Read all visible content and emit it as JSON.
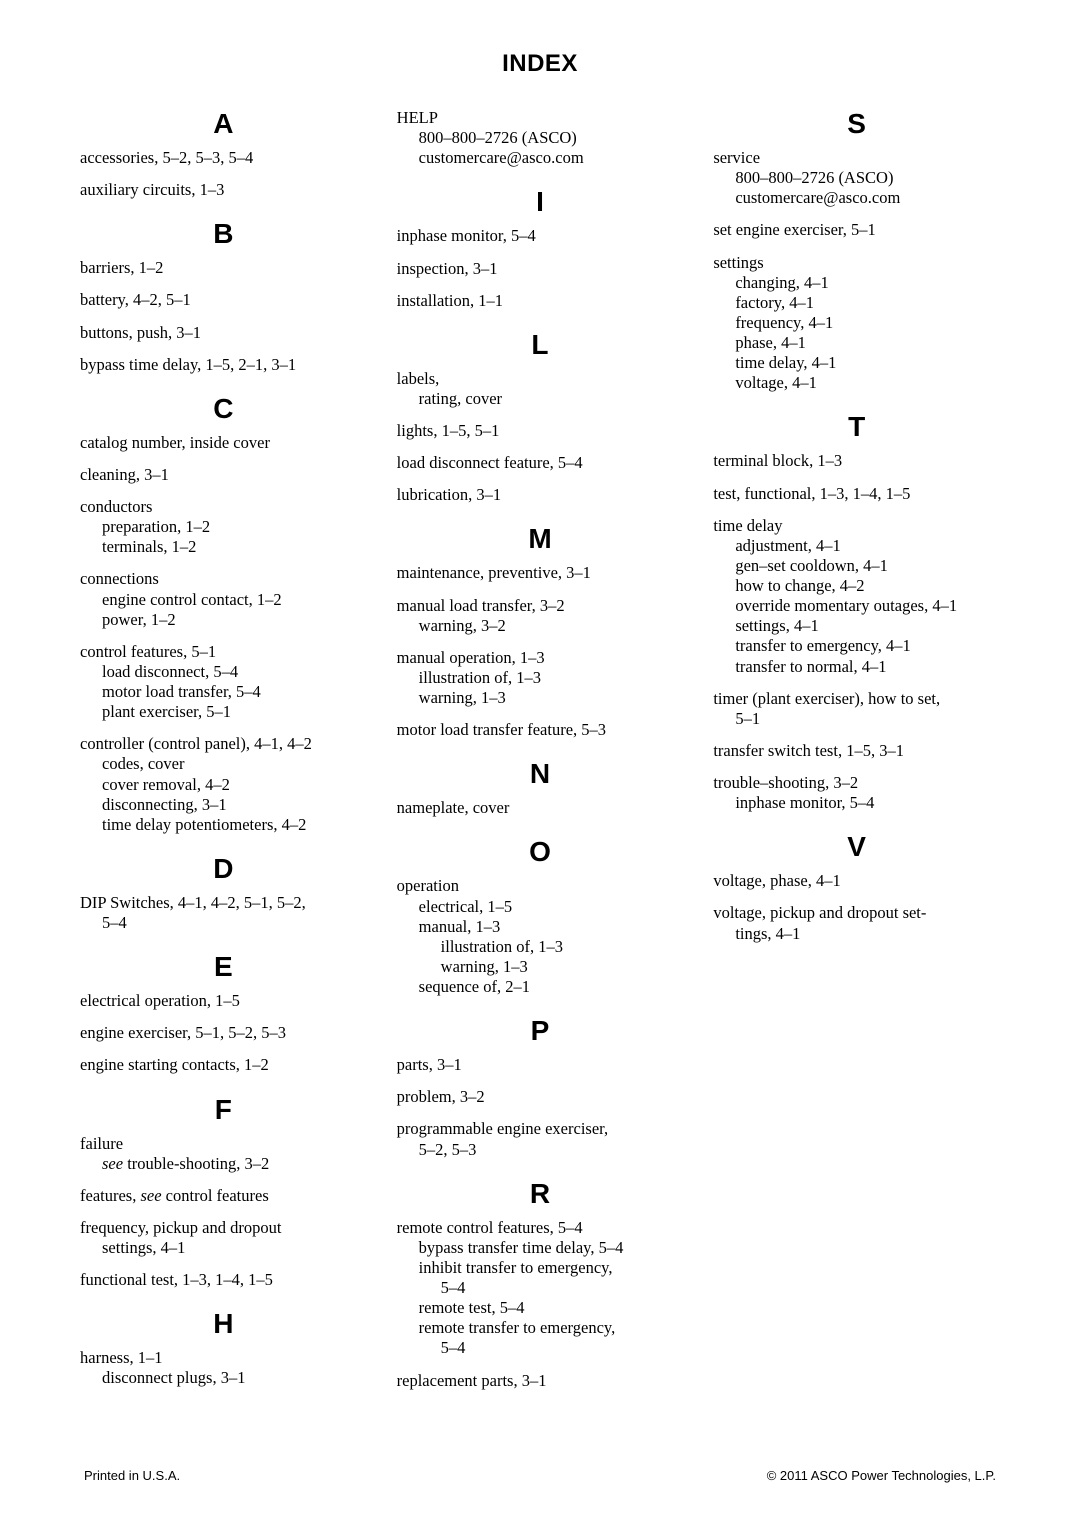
{
  "title": "INDEX",
  "footer_left": "Printed in U.S.A.",
  "footer_right": "© 2011 ASCO Power Technologies, L.P.",
  "sections": [
    {
      "letter": "A",
      "entries": [
        {
          "lines": [
            "accessories, 5–2, 5–3, 5–4"
          ]
        },
        {
          "lines": [
            "auxiliary circuits, 1–3"
          ]
        }
      ]
    },
    {
      "letter": "B",
      "entries": [
        {
          "lines": [
            "barriers, 1–2"
          ]
        },
        {
          "lines": [
            "battery, 4–2, 5–1"
          ]
        },
        {
          "lines": [
            "buttons, push, 3–1"
          ]
        },
        {
          "lines": [
            "bypass time delay, 1–5, 2–1, 3–1"
          ]
        }
      ]
    },
    {
      "letter": "C",
      "entries": [
        {
          "lines": [
            "catalog number, inside cover"
          ]
        },
        {
          "lines": [
            "cleaning, 3–1"
          ]
        },
        {
          "lines": [
            "conductors",
            {
              "t": "preparation, 1–2",
              "i": 1
            },
            {
              "t": "terminals, 1–2",
              "i": 1
            }
          ]
        },
        {
          "lines": [
            "connections",
            {
              "t": "engine control contact, 1–2",
              "i": 1
            },
            {
              "t": "power, 1–2",
              "i": 1
            }
          ]
        },
        {
          "lines": [
            "control features, 5–1",
            {
              "t": "load disconnect, 5–4",
              "i": 1
            },
            {
              "t": "motor load transfer, 5–4",
              "i": 1
            },
            {
              "t": "plant exerciser, 5–1",
              "i": 1
            }
          ]
        },
        {
          "lines": [
            "controller (control panel), 4–1, 4–2",
            {
              "t": "codes, cover",
              "i": 1
            },
            {
              "t": "cover removal, 4–2",
              "i": 1
            },
            {
              "t": "disconnecting, 3–1",
              "i": 1
            },
            {
              "t": "time delay potentiometers, 4–2",
              "i": 1
            }
          ]
        }
      ]
    },
    {
      "letter": "D",
      "entries": [
        {
          "lines": [
            "DIP Switches, 4–1, 4–2, 5–1, 5–2, ",
            {
              "t": "5–4",
              "i": 1
            }
          ]
        }
      ]
    },
    {
      "letter": "E",
      "entries": [
        {
          "lines": [
            "electrical operation, 1–5"
          ]
        },
        {
          "lines": [
            "engine exerciser, 5–1, 5–2, 5–3"
          ]
        },
        {
          "lines": [
            "engine starting contacts, 1–2"
          ]
        }
      ]
    },
    {
      "letter": "F",
      "entries": [
        {
          "lines": [
            "failure",
            {
              "html": "<span class='it'>see</span> trouble-shooting, 3–2",
              "i": 1
            }
          ]
        },
        {
          "lines": [
            {
              "html": "features, <span class='it'>see</span> control features"
            }
          ]
        },
        {
          "lines": [
            "frequency, pickup and dropout",
            {
              "t": "settings, 4–1",
              "i": 1
            }
          ]
        },
        {
          "lines": [
            "functional test, 1–3, 1–4, 1–5"
          ]
        }
      ]
    },
    {
      "letter": "H",
      "entries": [
        {
          "lines": [
            "harness, 1–1",
            {
              "t": "disconnect plugs, 3–1",
              "i": 1
            }
          ]
        },
        {
          "lines": [
            "HELP",
            {
              "t": "800–800–2726 (ASCO)",
              "i": 1
            },
            {
              "t": "customercare@asco.com",
              "i": 1
            }
          ]
        }
      ]
    },
    {
      "letter": "I",
      "entries": [
        {
          "lines": [
            "inphase monitor, 5–4"
          ]
        },
        {
          "lines": [
            "inspection, 3–1"
          ]
        },
        {
          "lines": [
            "installation, 1–1"
          ]
        }
      ]
    },
    {
      "letter": "L",
      "entries": [
        {
          "lines": [
            "labels,",
            {
              "t": "rating, cover",
              "i": 1
            }
          ]
        },
        {
          "lines": [
            "lights, 1–5, 5–1"
          ]
        },
        {
          "lines": [
            "load disconnect feature, 5–4"
          ]
        },
        {
          "lines": [
            "lubrication, 3–1"
          ]
        }
      ]
    },
    {
      "letter": "M",
      "entries": [
        {
          "lines": [
            "maintenance, preventive, 3–1"
          ]
        },
        {
          "lines": [
            "manual load transfer, 3–2",
            {
              "t": "warning, 3–2",
              "i": 1
            }
          ]
        },
        {
          "lines": [
            "manual operation, 1–3",
            {
              "t": "illustration of, 1–3",
              "i": 1
            },
            {
              "t": "warning, 1–3",
              "i": 1
            }
          ]
        },
        {
          "lines": [
            "motor load transfer feature, 5–3"
          ]
        }
      ]
    },
    {
      "letter": "N",
      "entries": [
        {
          "lines": [
            "nameplate, cover"
          ]
        }
      ]
    },
    {
      "letter": "O",
      "entries": [
        {
          "lines": [
            "operation",
            {
              "t": "electrical, 1–5",
              "i": 1
            },
            {
              "t": "manual, 1–3",
              "i": 1
            },
            {
              "t": "illustration of, 1–3",
              "i": 2
            },
            {
              "t": "warning, 1–3",
              "i": 2
            },
            {
              "t": "sequence of, 2–1",
              "i": 1
            }
          ]
        }
      ]
    },
    {
      "letter": "P",
      "entries": [
        {
          "lines": [
            "parts, 3–1"
          ]
        },
        {
          "lines": [
            "problem, 3–2"
          ]
        },
        {
          "lines": [
            "programmable engine exerciser, ",
            {
              "t": "5–2, 5–3",
              "i": 1
            }
          ]
        }
      ]
    },
    {
      "letter": "R",
      "entries": [
        {
          "lines": [
            "remote control features, 5–4",
            {
              "t": "bypass transfer time delay, 5–4",
              "i": 1
            },
            {
              "t": "inhibit transfer to emergency, ",
              "i": 1
            },
            {
              "t": "5–4",
              "i": 2
            },
            {
              "t": "remote test, 5–4",
              "i": 1
            },
            {
              "t": "remote transfer to emergency, ",
              "i": 1
            },
            {
              "t": "5–4",
              "i": 2
            }
          ]
        },
        {
          "lines": [
            "replacement parts, 3–1"
          ]
        }
      ]
    },
    {
      "letter": "S",
      "entries": [
        {
          "lines": [
            "service",
            {
              "t": "800–800–2726 (ASCO)",
              "i": 1
            },
            {
              "t": "customercare@asco.com",
              "i": 1
            }
          ]
        },
        {
          "lines": [
            "set engine exerciser, 5–1"
          ]
        },
        {
          "lines": [
            "settings",
            {
              "t": "changing, 4–1",
              "i": 1
            },
            {
              "t": "factory, 4–1",
              "i": 1
            },
            {
              "t": "frequency, 4–1",
              "i": 1
            },
            {
              "t": "phase, 4–1",
              "i": 1
            },
            {
              "t": "time delay, 4–1",
              "i": 1
            },
            {
              "t": "voltage, 4–1",
              "i": 1
            }
          ]
        }
      ]
    },
    {
      "letter": "T",
      "entries": [
        {
          "lines": [
            "terminal block, 1–3"
          ]
        },
        {
          "lines": [
            "test, functional, 1–3, 1–4, 1–5"
          ]
        },
        {
          "lines": [
            "time delay",
            {
              "t": "adjustment, 4–1",
              "i": 1
            },
            {
              "t": "gen–set cooldown, 4–1",
              "i": 1
            },
            {
              "t": "how to change, 4–2",
              "i": 1
            },
            {
              "t": "override momentary outages, 4–1",
              "i": 1
            },
            {
              "t": "settings, 4–1",
              "i": 1
            },
            {
              "t": "transfer to emergency, 4–1",
              "i": 1
            },
            {
              "t": "transfer to normal, 4–1",
              "i": 1
            }
          ]
        },
        {
          "lines": [
            "timer (plant exerciser), how to set, ",
            {
              "t": "5–1",
              "i": 1
            }
          ]
        },
        {
          "lines": [
            "transfer switch test, 1–5, 3–1"
          ]
        },
        {
          "lines": [
            "trouble–shooting, 3–2",
            {
              "t": "inphase monitor, 5–4",
              "i": 1
            }
          ]
        }
      ]
    },
    {
      "letter": "V",
      "entries": [
        {
          "lines": [
            "voltage, phase, 4–1"
          ]
        },
        {
          "lines": [
            "voltage, pickup and dropout set-",
            {
              "t": "tings, 4–1",
              "i": 1
            }
          ]
        }
      ]
    }
  ]
}
